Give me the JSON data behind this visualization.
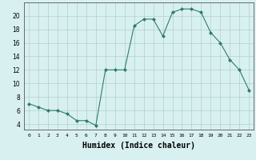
{
  "x": [
    0,
    1,
    2,
    3,
    4,
    5,
    6,
    7,
    8,
    9,
    10,
    11,
    12,
    13,
    14,
    15,
    16,
    17,
    18,
    19,
    20,
    21,
    22,
    23
  ],
  "y": [
    7,
    6.5,
    6,
    6,
    5.5,
    4.5,
    4.5,
    3.8,
    12,
    12,
    12,
    18.5,
    19.5,
    19.5,
    17,
    20.5,
    21,
    21,
    20.5,
    17.5,
    16,
    13.5,
    12,
    9
  ],
  "line_color": "#2d7d6b",
  "marker": "D",
  "marker_size": 2.0,
  "bg_color": "#d9f0f0",
  "grid_color": "#b0d0d0",
  "xlabel": "Humidex (Indice chaleur)",
  "xlabel_fontsize": 7,
  "xtick_labels": [
    "0",
    "1",
    "2",
    "3",
    "4",
    "5",
    "6",
    "7",
    "8",
    "9",
    "10",
    "11",
    "12",
    "13",
    "14",
    "15",
    "16",
    "17",
    "18",
    "19",
    "20",
    "21",
    "22",
    "23"
  ],
  "ytick_values": [
    4,
    6,
    8,
    10,
    12,
    14,
    16,
    18,
    20
  ],
  "ylim": [
    3.2,
    22.0
  ],
  "xlim": [
    -0.5,
    23.5
  ]
}
